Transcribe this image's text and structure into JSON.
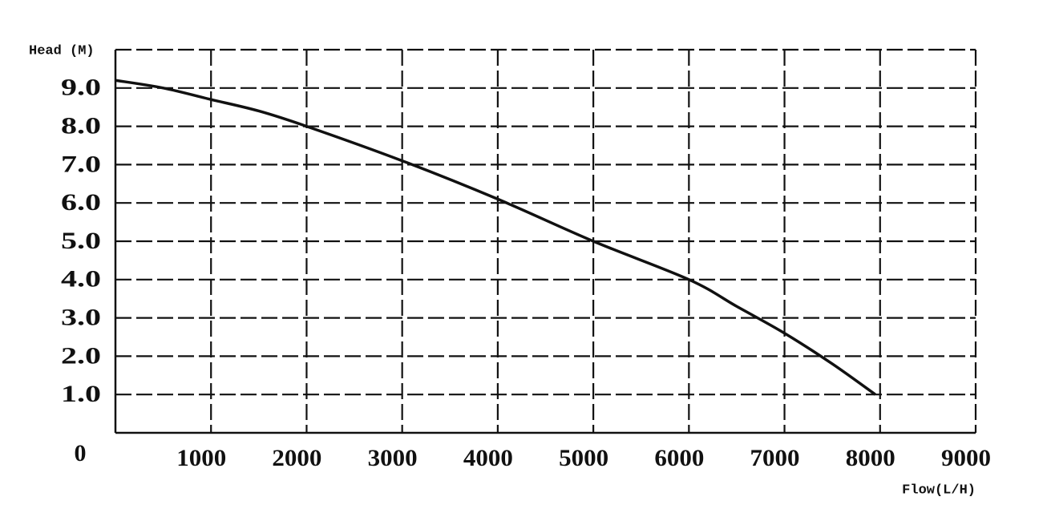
{
  "chart_data": {
    "type": "line",
    "y_label": "Head (M)",
    "x_label": "Flow(L/H)",
    "x": [
      0,
      500,
      1000,
      1500,
      2000,
      3000,
      4000,
      5000,
      6000,
      6500,
      7000,
      7500,
      7950
    ],
    "values": [
      9.2,
      9.0,
      8.7,
      8.4,
      8.0,
      7.1,
      6.1,
      5.0,
      4.0,
      3.3,
      2.6,
      1.8,
      1.0
    ],
    "color": "#111111",
    "xlim": [
      0,
      9000
    ],
    "xticks": [
      0,
      1000,
      2000,
      3000,
      4000,
      5000,
      6000,
      7000,
      8000,
      9000
    ],
    "ylim": [
      0,
      10
    ],
    "yticks": [
      {
        "value": 1,
        "label": "1.0"
      },
      {
        "value": 2,
        "label": "2.0"
      },
      {
        "value": 3,
        "label": "3.0"
      },
      {
        "value": 4,
        "label": "4.0"
      },
      {
        "value": 5,
        "label": "5.0"
      },
      {
        "value": 6,
        "label": "6.0"
      },
      {
        "value": 7,
        "label": "7.0"
      },
      {
        "value": 8,
        "label": "8.0"
      },
      {
        "value": 9,
        "label": "9.0"
      },
      10
    ],
    "grid": true
  }
}
